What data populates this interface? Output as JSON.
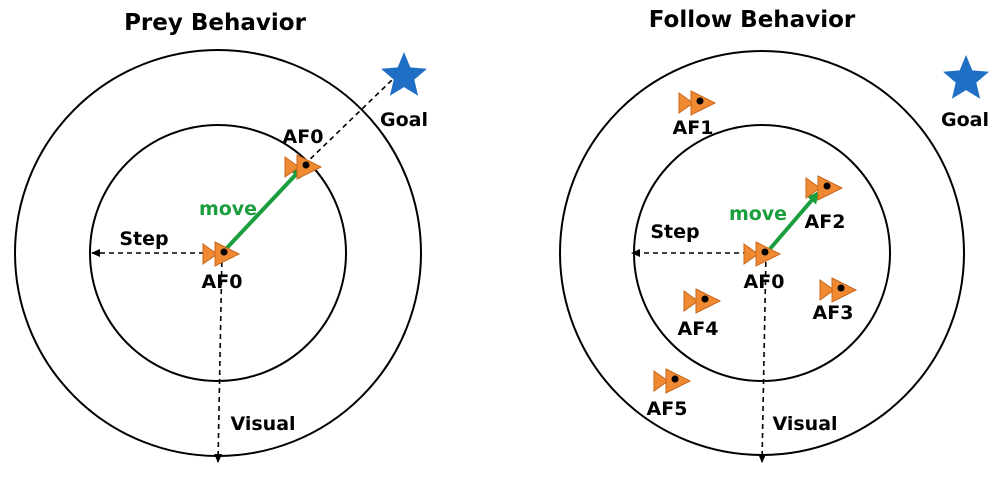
{
  "panels": {
    "prey": {
      "title": "Prey Behavior",
      "goal": "Goal",
      "af0_new": "AF0",
      "af0": "AF0",
      "move": "move",
      "step": "Step",
      "visual": "Visual"
    },
    "follow": {
      "title": "Follow Behavior",
      "goal": "Goal",
      "af0": "AF0",
      "af1": "AF1",
      "af2": "AF2",
      "af3": "AF3",
      "af4": "AF4",
      "af5": "AF5",
      "move": "move",
      "step": "Step",
      "visual": "Visual"
    }
  },
  "colors": {
    "fish": "#f08a32",
    "move_arrow": "#1a9e3e",
    "goal_star": "#1f6fc5"
  },
  "icons": {
    "fish": "fish-icon",
    "goal": "star-icon"
  }
}
